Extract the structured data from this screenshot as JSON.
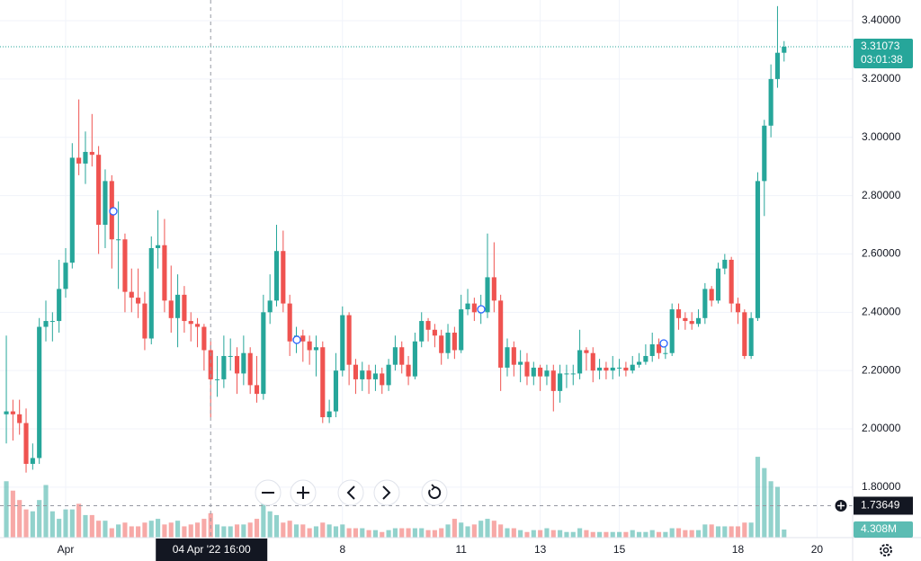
{
  "chart_data": {
    "type": "candlestick",
    "up_color": "#26a69a",
    "down_color": "#ef5350",
    "grid": true,
    "x": [
      -9,
      -8,
      -7,
      -6,
      -5,
      -4,
      -3,
      -2,
      -1,
      0,
      1,
      2,
      3,
      4,
      5,
      6,
      7,
      8,
      9,
      10,
      11,
      12,
      13,
      14,
      15,
      16,
      17,
      18,
      19,
      20,
      21,
      22,
      23,
      24,
      25,
      26,
      27,
      28,
      29,
      30,
      31,
      32,
      33,
      34,
      35,
      36,
      37,
      38,
      39,
      40,
      41,
      42,
      43,
      44,
      45,
      46,
      47,
      48,
      49,
      50,
      51,
      52,
      53,
      54,
      55,
      56,
      57,
      58,
      59,
      60,
      61,
      62,
      63,
      64,
      65,
      66,
      67,
      68,
      69,
      70,
      71,
      72,
      73,
      74,
      75,
      76,
      77,
      78,
      79,
      80,
      81,
      82,
      83,
      84,
      85,
      86,
      87,
      88,
      89,
      90,
      91,
      92,
      93,
      94,
      95,
      96,
      97,
      98,
      99,
      100,
      101,
      102,
      103,
      104,
      105,
      106,
      107,
      108,
      109
    ],
    "open": [
      2.05,
      2.06,
      2.05,
      2.02,
      1.88,
      1.9,
      2.35,
      2.37,
      2.37,
      2.48,
      2.57,
      2.93,
      2.91,
      2.95,
      2.94,
      2.7,
      2.85,
      2.65,
      2.65,
      2.47,
      2.45,
      2.43,
      2.31,
      2.62,
      2.63,
      2.44,
      2.38,
      2.46,
      2.37,
      2.36,
      2.35,
      2.27,
      2.17,
      2.17,
      2.25,
      2.25,
      2.19,
      2.26,
      2.15,
      2.12,
      2.4,
      2.44,
      2.61,
      2.43,
      2.3,
      2.32,
      2.3,
      2.27,
      2.28,
      2.04,
      2.06,
      2.2,
      2.39,
      2.22,
      2.17,
      2.2,
      2.17,
      2.19,
      2.15,
      2.22,
      2.28,
      2.22,
      2.18,
      2.3,
      2.37,
      2.34,
      2.32,
      2.26,
      2.33,
      2.27,
      2.41,
      2.43,
      2.4,
      2.4,
      2.52,
      2.44,
      2.21,
      2.28,
      2.22,
      2.23,
      2.18,
      2.21,
      2.18,
      2.2,
      2.13,
      2.19,
      2.19,
      2.19,
      2.27,
      2.26,
      2.2,
      2.21,
      2.2,
      2.21,
      2.21,
      2.2,
      2.22,
      2.23,
      2.25,
      2.29,
      2.26,
      2.26,
      2.41,
      2.38,
      2.37,
      2.36,
      2.38,
      2.48,
      2.44,
      2.55,
      2.58,
      2.43,
      2.4,
      2.25,
      2.38,
      2.85,
      3.04,
      3.2,
      3.29
    ],
    "high": [
      2.32,
      2.1,
      2.1,
      2.07,
      1.95,
      2.38,
      2.44,
      2.4,
      2.58,
      2.62,
      2.98,
      3.13,
      3.02,
      3.08,
      2.97,
      2.89,
      2.87,
      2.78,
      2.67,
      2.55,
      2.55,
      2.47,
      2.66,
      2.75,
      2.72,
      2.56,
      2.53,
      2.49,
      2.4,
      2.38,
      2.36,
      2.3,
      2.25,
      2.32,
      2.31,
      2.28,
      2.32,
      2.28,
      2.25,
      2.46,
      2.53,
      2.7,
      2.68,
      2.46,
      2.35,
      2.34,
      2.32,
      2.32,
      2.3,
      2.1,
      2.26,
      2.42,
      2.4,
      2.24,
      2.23,
      2.22,
      2.22,
      2.21,
      2.24,
      2.32,
      2.3,
      2.25,
      2.33,
      2.4,
      2.38,
      2.36,
      2.34,
      2.36,
      2.35,
      2.46,
      2.48,
      2.45,
      2.46,
      2.67,
      2.64,
      2.46,
      2.31,
      2.3,
      2.27,
      2.26,
      2.23,
      2.22,
      2.22,
      2.22,
      2.22,
      2.22,
      2.22,
      2.34,
      2.28,
      2.28,
      2.24,
      2.23,
      2.25,
      2.24,
      2.23,
      2.25,
      2.26,
      2.29,
      2.33,
      2.31,
      2.3,
      2.43,
      2.43,
      2.4,
      2.4,
      2.41,
      2.5,
      2.49,
      2.57,
      2.6,
      2.59,
      2.45,
      2.41,
      2.4,
      2.88,
      3.06,
      3.25,
      3.45,
      3.33
    ],
    "low": [
      1.95,
      1.96,
      1.98,
      1.85,
      1.86,
      1.88,
      2.3,
      2.3,
      2.33,
      2.45,
      2.55,
      2.87,
      2.84,
      2.9,
      2.6,
      2.62,
      2.55,
      2.48,
      2.4,
      2.4,
      2.38,
      2.27,
      2.29,
      2.55,
      2.4,
      2.33,
      2.28,
      2.33,
      2.3,
      2.28,
      2.2,
      2.04,
      2.11,
      2.14,
      2.2,
      2.12,
      2.15,
      2.12,
      2.09,
      2.1,
      2.36,
      2.42,
      2.4,
      2.25,
      2.26,
      2.23,
      2.22,
      2.18,
      2.02,
      2.02,
      2.04,
      2.18,
      2.15,
      2.12,
      2.13,
      2.12,
      2.13,
      2.12,
      2.13,
      2.2,
      2.19,
      2.15,
      2.17,
      2.28,
      2.3,
      2.28,
      2.22,
      2.24,
      2.24,
      2.26,
      2.39,
      2.37,
      2.36,
      2.38,
      2.4,
      2.13,
      2.18,
      2.18,
      2.16,
      2.15,
      2.15,
      2.13,
      2.15,
      2.06,
      2.09,
      2.14,
      2.15,
      2.17,
      2.2,
      2.16,
      2.17,
      2.17,
      2.17,
      2.18,
      2.18,
      2.19,
      2.21,
      2.22,
      2.23,
      2.24,
      2.24,
      2.25,
      2.34,
      2.34,
      2.34,
      2.35,
      2.36,
      2.42,
      2.43,
      2.53,
      2.4,
      2.36,
      2.24,
      2.24,
      2.37,
      2.73,
      3.0,
      3.17,
      3.26
    ],
    "close": [
      2.06,
      2.05,
      2.02,
      1.88,
      1.9,
      2.35,
      2.37,
      2.37,
      2.48,
      2.57,
      2.93,
      2.91,
      2.95,
      2.94,
      2.7,
      2.85,
      2.65,
      2.65,
      2.47,
      2.45,
      2.43,
      2.31,
      2.62,
      2.63,
      2.44,
      2.38,
      2.46,
      2.37,
      2.36,
      2.35,
      2.27,
      2.17,
      2.17,
      2.25,
      2.25,
      2.19,
      2.26,
      2.15,
      2.12,
      2.4,
      2.44,
      2.61,
      2.43,
      2.3,
      2.32,
      2.3,
      2.27,
      2.28,
      2.04,
      2.06,
      2.2,
      2.39,
      2.22,
      2.17,
      2.2,
      2.17,
      2.19,
      2.15,
      2.22,
      2.28,
      2.22,
      2.18,
      2.3,
      2.37,
      2.34,
      2.32,
      2.26,
      2.33,
      2.27,
      2.41,
      2.43,
      2.4,
      2.4,
      2.52,
      2.44,
      2.21,
      2.28,
      2.22,
      2.23,
      2.18,
      2.21,
      2.18,
      2.2,
      2.13,
      2.19,
      2.19,
      2.19,
      2.27,
      2.26,
      2.2,
      2.21,
      2.2,
      2.21,
      2.21,
      2.2,
      2.22,
      2.23,
      2.25,
      2.29,
      2.26,
      2.26,
      2.41,
      2.38,
      2.37,
      2.36,
      2.38,
      2.48,
      2.44,
      2.55,
      2.58,
      2.43,
      2.4,
      2.25,
      2.38,
      2.85,
      3.04,
      3.2,
      3.29,
      3.31073
    ],
    "volume": [
      30,
      25,
      20,
      15,
      14,
      20,
      28,
      14,
      10,
      15,
      15,
      18,
      12,
      12,
      9,
      9,
      5,
      7,
      8,
      6,
      6,
      8,
      9,
      10,
      7,
      8,
      9,
      6,
      7,
      8,
      10,
      13,
      7,
      6,
      6,
      7,
      7,
      8,
      10,
      18,
      14,
      12,
      8,
      9,
      7,
      7,
      5,
      6,
      8,
      7,
      6,
      7,
      5,
      5,
      5,
      4,
      4,
      3,
      4,
      5,
      5,
      5,
      5,
      5,
      4,
      4,
      5,
      7,
      10,
      8,
      6,
      7,
      9,
      10,
      9,
      7,
      5,
      5,
      4,
      3,
      4,
      4,
      5,
      4,
      4,
      3,
      3,
      5,
      4,
      3,
      3,
      3,
      3,
      3,
      3,
      4,
      3,
      3,
      4,
      3,
      3,
      5,
      5,
      4,
      4,
      4,
      7,
      7,
      6,
      6,
      6,
      6,
      8,
      8,
      43,
      37,
      30,
      27,
      4.308
    ],
    "volume_last_label": "4.308M",
    "volume_lim": [
      0,
      286
    ],
    "xlim": [
      -9.96,
      119.4
    ],
    "xticks": [
      {
        "value": 0,
        "label": "Apr"
      },
      {
        "value": 42,
        "label": "8"
      },
      {
        "value": 60,
        "label": "11"
      },
      {
        "value": 72,
        "label": "13"
      },
      {
        "value": 84,
        "label": "15"
      },
      {
        "value": 102,
        "label": "18"
      },
      {
        "value": 114,
        "label": "20"
      }
    ],
    "ylim": [
      1.627,
      3.471
    ],
    "yticks": [
      {
        "value": 3.4,
        "label": "3.40000"
      },
      {
        "value": 3.2,
        "label": "3.20000"
      },
      {
        "value": 3.0,
        "label": "3.00000"
      },
      {
        "value": 2.8,
        "label": "2.80000"
      },
      {
        "value": 2.6,
        "label": "2.60000"
      },
      {
        "value": 2.4,
        "label": "2.40000"
      },
      {
        "value": 2.2,
        "label": "2.20000"
      },
      {
        "value": 2.0,
        "label": "2.00000"
      },
      {
        "value": 1.8,
        "label": "1.80000"
      }
    ],
    "countdown": "03:01:38",
    "crosshair": {
      "x": 22,
      "x_label": "04 Apr '22 16:00",
      "price": 1.73649
    }
  }
}
